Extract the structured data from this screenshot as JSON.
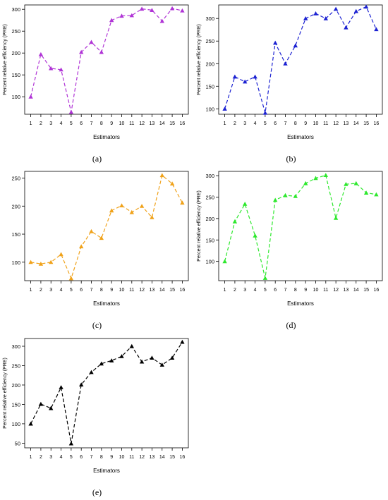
{
  "chart_data": [
    {
      "type": "line",
      "caption": "(a)",
      "color": "#b034d6",
      "xlabel": "Estimators",
      "ylabel": "Percent relative efficiency (PRE)",
      "x": [
        1,
        2,
        3,
        4,
        5,
        6,
        7,
        8,
        9,
        10,
        11,
        12,
        13,
        14,
        15,
        16
      ],
      "values": [
        100,
        197,
        165,
        162,
        65,
        202,
        225,
        202,
        275,
        285,
        286,
        301,
        298,
        273,
        302,
        297
      ],
      "ylim": [
        60,
        310
      ],
      "yticks": [
        100,
        150,
        200,
        250,
        300
      ],
      "line_style": "dashed",
      "marker": "triangle"
    },
    {
      "type": "line",
      "caption": "(b)",
      "color": "#1c22d2",
      "xlabel": "Estimators",
      "ylabel": "Percent relative efficiency (PRE)",
      "x": [
        1,
        2,
        3,
        4,
        5,
        6,
        7,
        8,
        9,
        10,
        11,
        12,
        13,
        14,
        15,
        16
      ],
      "values": [
        100,
        171,
        160,
        171,
        91,
        246,
        200,
        240,
        300,
        311,
        300,
        321,
        280,
        316,
        326,
        276
      ],
      "ylim": [
        88,
        330
      ],
      "yticks": [
        100,
        150,
        200,
        250,
        300
      ],
      "line_style": "dashed",
      "marker": "triangle"
    },
    {
      "type": "line",
      "caption": "(c)",
      "color": "#f0a21a",
      "xlabel": "Estimators",
      "ylabel": "",
      "x": [
        1,
        2,
        3,
        4,
        5,
        6,
        7,
        8,
        9,
        10,
        11,
        12,
        13,
        14,
        15,
        16
      ],
      "values": [
        100,
        97,
        100,
        114,
        71,
        128,
        155,
        143,
        192,
        201,
        189,
        200,
        180,
        255,
        240,
        206
      ],
      "ylim": [
        67,
        262
      ],
      "yticks": [
        100,
        150,
        200,
        250
      ],
      "line_style": "dashed",
      "marker": "triangle"
    },
    {
      "type": "line",
      "caption": "(d)",
      "color": "#2de82d",
      "xlabel": "Estimators",
      "ylabel": "Percent relative efficiency (PRE)",
      "x": [
        1,
        2,
        3,
        4,
        5,
        6,
        7,
        8,
        9,
        10,
        11,
        12,
        13,
        14,
        15,
        16
      ],
      "values": [
        100,
        193,
        234,
        160,
        61,
        243,
        254,
        252,
        282,
        294,
        301,
        201,
        280,
        282,
        260,
        256
      ],
      "ylim": [
        55,
        310
      ],
      "yticks": [
        100,
        150,
        200,
        250,
        300
      ],
      "line_style": "dashed",
      "marker": "triangle"
    },
    {
      "type": "line",
      "caption": "(e)",
      "color": "#000000",
      "xlabel": "Estimators",
      "ylabel": "Percent relative efficiency (PRE)",
      "x": [
        1,
        2,
        3,
        4,
        5,
        6,
        7,
        8,
        9,
        10,
        11,
        12,
        13,
        14,
        15,
        16
      ],
      "values": [
        100,
        151,
        140,
        194,
        49,
        201,
        233,
        255,
        263,
        274,
        300,
        260,
        270,
        252,
        270,
        311
      ],
      "ylim": [
        38,
        320
      ],
      "yticks": [
        50,
        100,
        150,
        200,
        250,
        300
      ],
      "line_style": "dashed",
      "marker": "triangle"
    }
  ]
}
